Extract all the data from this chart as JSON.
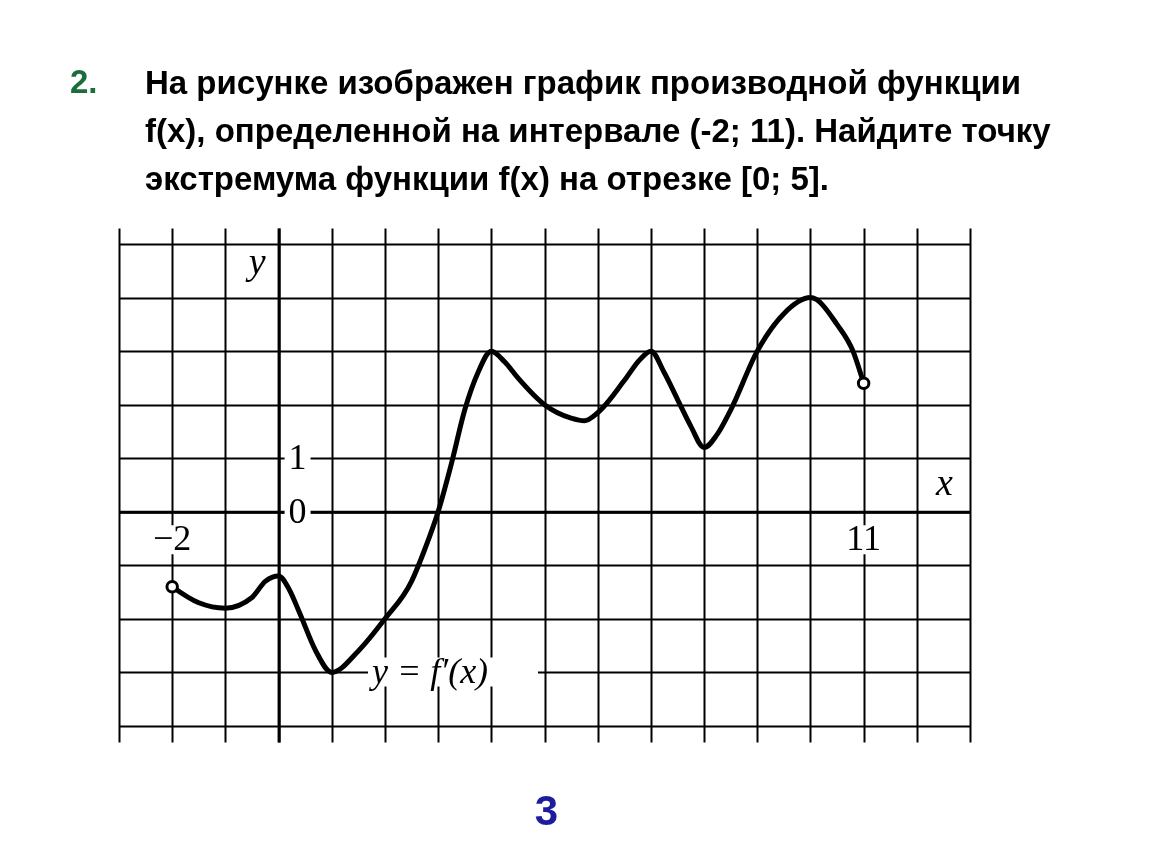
{
  "chart_data": {
    "type": "line",
    "title": "На рисунке изображен график производной функции\nf(x), определенной на интервале (-2; 11). Найдите точку\nэкстремума функции f(x) на отрезке [0; 5].",
    "xlabel": "x",
    "ylabel": "y",
    "annotations": [
      "2.",
      "y = f′(x)",
      "3"
    ],
    "xlim": [
      -3,
      13
    ],
    "ylim": [
      -4.3,
      5.3
    ],
    "xticks": [
      {
        "value": -3,
        "label": null
      },
      -2,
      {
        "value": -1,
        "label": null
      },
      {
        "value": 0,
        "label": null
      },
      {
        "value": 1,
        "label": null
      },
      {
        "value": 2,
        "label": null
      },
      {
        "value": 3,
        "label": null
      },
      {
        "value": 4,
        "label": null
      },
      {
        "value": 5,
        "label": null
      },
      {
        "value": 6,
        "label": null
      },
      {
        "value": 7,
        "label": null
      },
      {
        "value": 8,
        "label": null
      },
      {
        "value": 9,
        "label": null
      },
      {
        "value": 10,
        "label": null
      },
      11,
      {
        "value": 12,
        "label": null
      },
      {
        "value": 13,
        "label": null
      }
    ],
    "yticks": [
      {
        "value": -4,
        "label": null
      },
      {
        "value": -3,
        "label": null
      },
      {
        "value": -2,
        "label": null
      },
      {
        "value": -1,
        "label": null
      },
      0,
      1,
      {
        "value": 2,
        "label": null
      },
      {
        "value": 3,
        "label": null
      },
      {
        "value": 4,
        "label": null
      },
      {
        "value": 5,
        "label": null
      }
    ],
    "grid": true,
    "series": [
      {
        "color": "#000000",
        "x": [
          -2,
          -1.5,
          -1,
          -0.5,
          -0.25,
          0,
          0.2,
          0.4,
          0.7,
          1,
          1.5,
          2,
          2.5,
          2.75,
          3,
          3.25,
          3.5,
          3.75,
          4,
          4.25,
          4.5,
          5,
          5.5,
          5.75,
          6,
          6.5,
          6.8,
          7,
          7.25,
          7.5,
          7.75,
          8,
          8.25,
          8.5,
          9,
          9.5,
          10,
          10.5,
          10.8,
          11
        ],
        "values": [
          -1.4,
          -1.7,
          -1.8,
          -1.6,
          -1.3,
          -1.2,
          -1.45,
          -1.9,
          -2.6,
          -3,
          -2.6,
          -2,
          -1.3,
          -0.7,
          0,
          0.9,
          1.9,
          2.6,
          3,
          2.8,
          2.5,
          2,
          1.75,
          1.7,
          1.85,
          2.45,
          2.85,
          3,
          2.6,
          2.1,
          1.6,
          1.2,
          1.45,
          1.9,
          3,
          3.7,
          4,
          3.5,
          3,
          2.4
        ]
      },
      {
        "type": "scatter",
        "color": "#000000",
        "marker": "circle",
        "x": [
          -2,
          11
        ],
        "values": [
          -1.4,
          2.4
        ]
      }
    ]
  }
}
